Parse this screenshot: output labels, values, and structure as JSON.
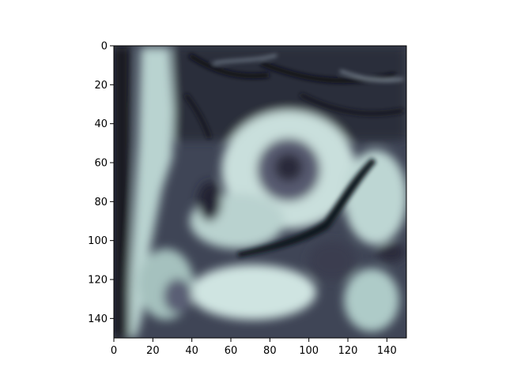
{
  "chart_data": {
    "type": "heatmap",
    "title": "",
    "xlabel": "",
    "ylabel": "",
    "x_range": [
      0,
      150
    ],
    "y_range": [
      0,
      150
    ],
    "y_inverted": true,
    "x_ticks": [
      "0",
      "20",
      "40",
      "60",
      "80",
      "100",
      "120",
      "140"
    ],
    "y_ticks": [
      "0",
      "20",
      "40",
      "60",
      "80",
      "100",
      "120",
      "140"
    ],
    "colormap": "bone",
    "grid": false,
    "legend": "none",
    "description_of_values": "150x150 grayscale intensity image"
  }
}
